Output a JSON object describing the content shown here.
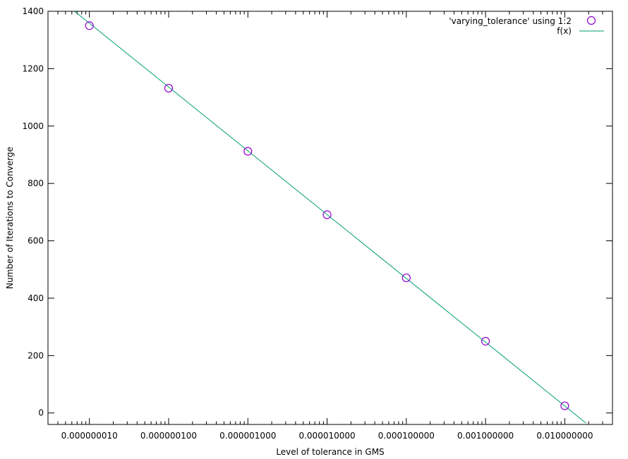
{
  "chart_data": {
    "type": "scatter",
    "title": "",
    "xlabel": "Level of tolerance in GMS",
    "ylabel": "Number of Iterations to Converge",
    "x_scale": "log10",
    "xlim": [
      3e-09,
      0.04
    ],
    "ylim": [
      -40,
      1400
    ],
    "x_ticks": [
      1e-08,
      1e-07,
      1e-06,
      1e-05,
      0.0001,
      0.001,
      0.01
    ],
    "x_tick_labels": [
      "0.000000010",
      "0.000000100",
      "0.000001000",
      "0.000010000",
      "0.000100000",
      "0.001000000",
      "0.010000000"
    ],
    "y_ticks": [
      0,
      200,
      400,
      600,
      800,
      1000,
      1200,
      1400
    ],
    "y_tick_labels": [
      "0",
      "200",
      "400",
      "600",
      "800",
      "1000",
      "1200",
      "1400"
    ],
    "grid": false,
    "legend_position": "top-right",
    "series": [
      {
        "name": "'varying_tolerance' using 1:2",
        "kind": "points",
        "marker": "open-circle",
        "color": "#9400d3",
        "x": [
          1e-08,
          1e-07,
          1e-06,
          1e-05,
          0.0001,
          0.001,
          0.01
        ],
        "y": [
          1350,
          1132,
          912,
          691,
          471,
          250,
          25
        ]
      },
      {
        "name": "f(x)",
        "kind": "line",
        "color": "#009e73",
        "x": [
          6.5e-09,
          0.0185
        ],
        "y": [
          1400,
          -35
        ]
      }
    ]
  }
}
